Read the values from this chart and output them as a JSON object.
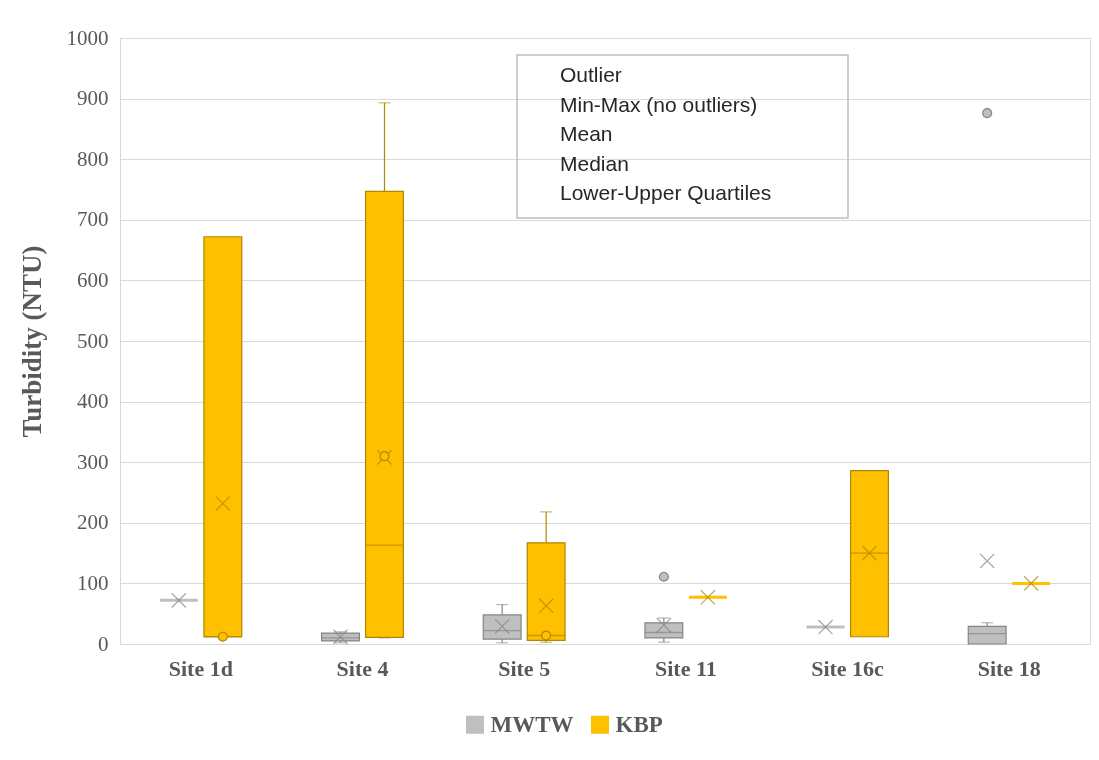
{
  "chart_data": {
    "type": "box",
    "ylabel": "Turbidity (NTU)",
    "categories": [
      "Site 1d",
      "Site 4",
      "Site 5",
      "Site 11",
      "Site 16c",
      "Site 18"
    ],
    "series": [
      {
        "name": "MWTW",
        "color": "#bfbfbf",
        "boxes": [
          {
            "low": 72,
            "q1": 72,
            "median": 72,
            "q3": 72,
            "high": 72,
            "mean": 72
          },
          {
            "low": 2,
            "q1": 5,
            "median": 10,
            "q3": 18,
            "high": 20,
            "mean": 12
          },
          {
            "low": 2,
            "q1": 8,
            "median": 22,
            "q3": 48,
            "high": 65,
            "mean": 29
          },
          {
            "low": 3,
            "q1": 10,
            "median": 19,
            "q3": 35,
            "high": 43,
            "mean": 31,
            "outliers": [
              111
            ]
          },
          {
            "low": 28,
            "q1": 28,
            "median": 28,
            "q3": 28,
            "high": 28,
            "mean": 28
          },
          {
            "low": 0,
            "q1": 0,
            "median": 17,
            "q3": 29,
            "high": 35,
            "mean": 137,
            "outliers": [
              876
            ]
          }
        ]
      },
      {
        "name": "KBP",
        "color": "#ffc000",
        "boxes": [
          {
            "low": 12,
            "q1": 12,
            "median": 12,
            "q3": 672,
            "high": 672,
            "mean": 232,
            "outliers": [
              12
            ]
          },
          {
            "low": 10,
            "q1": 11,
            "median": 163,
            "q3": 747,
            "high": 893,
            "mean": 308,
            "outliers": [
              310
            ]
          },
          {
            "low": 3,
            "q1": 6,
            "median": 14,
            "q3": 167,
            "high": 218,
            "mean": 63,
            "outliers": [
              14
            ]
          },
          {
            "low": 77,
            "q1": 77,
            "median": 77,
            "q3": 77,
            "high": 77,
            "mean": 77
          },
          {
            "low": 12,
            "q1": 12,
            "median": 150,
            "q3": 286,
            "high": 286,
            "mean": 150
          },
          {
            "low": 100,
            "q1": 100,
            "median": 100,
            "q3": 100,
            "high": 100,
            "mean": 100
          }
        ]
      }
    ],
    "ylim": [
      0,
      1000
    ],
    "yticks": [
      0,
      100,
      200,
      300,
      400,
      500,
      600,
      700,
      800,
      900,
      1000
    ],
    "grid": "y",
    "legend": "bottom",
    "annotations": [
      "Outlier",
      "Min-Max (no outliers)",
      "Mean",
      "Median",
      "Lower-Upper Quartiles"
    ]
  }
}
